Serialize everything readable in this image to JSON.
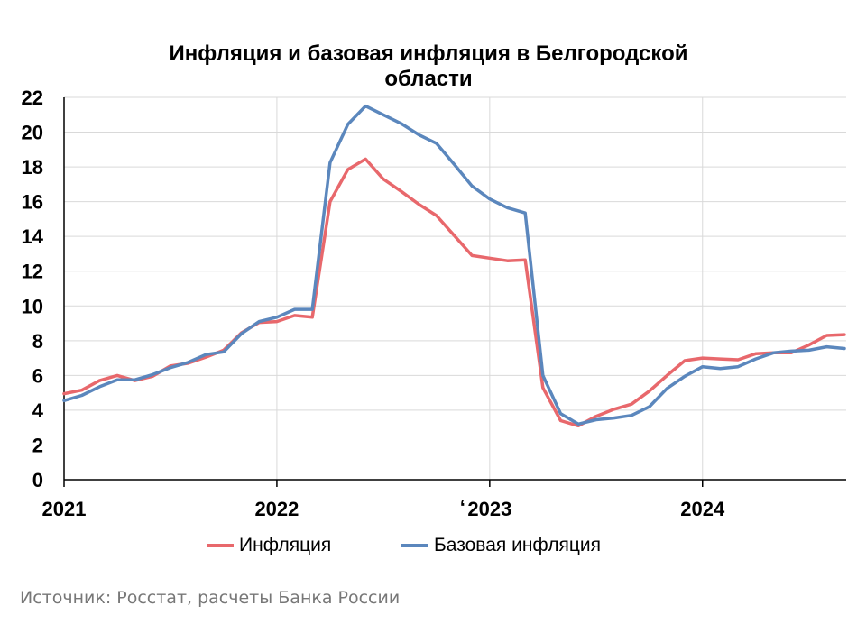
{
  "chart_data": {
    "type": "line",
    "title_line1": "Инфляция и базовая инфляция в Белгородской",
    "title_line2": "области",
    "y_ticks": [
      0,
      2,
      4,
      6,
      8,
      10,
      12,
      14,
      16,
      18,
      20,
      22
    ],
    "ylim": [
      0,
      22
    ],
    "x_ticks": [
      "2021",
      "2022",
      "2023",
      "2024"
    ],
    "x_label_2023_prefix": "‘",
    "grid": true,
    "legend_position": "bottom",
    "series": [
      {
        "name": "Инфляция",
        "color": "#e8686c",
        "values": [
          4.95,
          5.15,
          5.7,
          6.0,
          5.7,
          5.95,
          6.55,
          6.7,
          7.05,
          7.45,
          8.45,
          9.05,
          9.1,
          9.45,
          9.35,
          16.0,
          17.85,
          18.45,
          17.3,
          16.6,
          15.85,
          15.2,
          14.05,
          12.9,
          12.75,
          12.6,
          12.65,
          5.3,
          3.4,
          3.1,
          3.65,
          4.05,
          4.35,
          5.1,
          6.0,
          6.85,
          7.0,
          6.95,
          6.9,
          7.25,
          7.3,
          7.3,
          7.75,
          8.3,
          8.35
        ]
      },
      {
        "name": "Базовая инфляция",
        "color": "#5b87bd",
        "values": [
          4.55,
          4.85,
          5.35,
          5.75,
          5.75,
          6.05,
          6.45,
          6.75,
          7.2,
          7.35,
          8.4,
          9.1,
          9.35,
          9.8,
          9.8,
          18.25,
          20.45,
          21.5,
          21.0,
          20.5,
          19.85,
          19.35,
          18.15,
          16.9,
          16.15,
          15.65,
          15.35,
          6.0,
          3.8,
          3.2,
          3.45,
          3.55,
          3.7,
          4.2,
          5.25,
          5.95,
          6.5,
          6.4,
          6.5,
          6.95,
          7.3,
          7.4,
          7.45,
          7.65,
          7.55
        ]
      }
    ]
  },
  "source": "Источник: Росстат, расчеты Банка России"
}
